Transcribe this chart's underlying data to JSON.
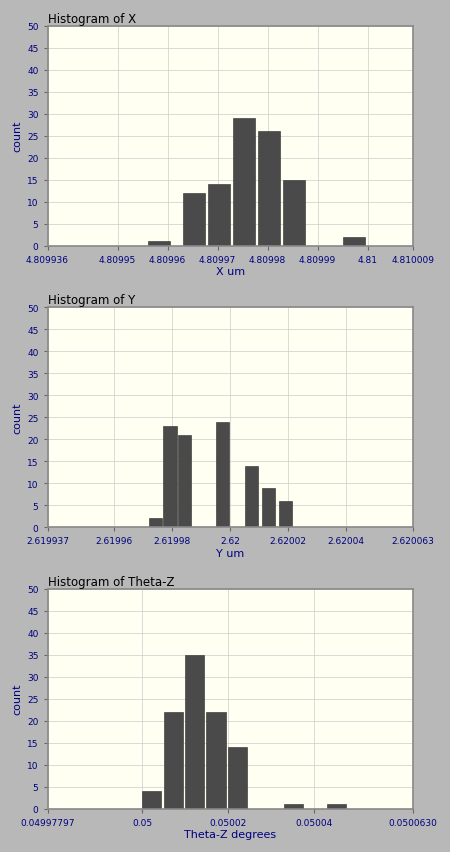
{
  "plots": [
    {
      "title": "Histogram of X",
      "xlabel": "X um",
      "ylabel": "count",
      "xlim": [
        4.809936,
        4.810009
      ],
      "ylim": [
        0,
        50
      ],
      "yticks": [
        0,
        5,
        10,
        15,
        20,
        25,
        30,
        35,
        40,
        45,
        50
      ],
      "xticks": [
        4.809936,
        4.80995,
        4.80996,
        4.80997,
        4.80998,
        4.80999,
        4.81,
        4.810009
      ],
      "xtick_labels": [
        "4.809936",
        "4.80995",
        "4.80996",
        "4.80997",
        "4.80998",
        "4.80999",
        "4.81",
        "4.810009"
      ],
      "bar_lefts": [
        4.809956,
        4.809963,
        4.809968,
        4.809973,
        4.809978,
        4.809983,
        4.809995
      ],
      "bar_heights": [
        1,
        12,
        14,
        29,
        26,
        15,
        2
      ],
      "bar_width": 4.5e-06
    },
    {
      "title": "Histogram of Y",
      "xlabel": "Y um",
      "ylabel": "count",
      "xlim": [
        2.619937,
        2.620063
      ],
      "ylim": [
        0,
        50
      ],
      "yticks": [
        0,
        5,
        10,
        15,
        20,
        25,
        30,
        35,
        40,
        45,
        50
      ],
      "xticks": [
        2.619937,
        2.61996,
        2.61998,
        2.62,
        2.62002,
        2.62004,
        2.620063
      ],
      "xtick_labels": [
        "2.619937",
        "2.61996",
        "2.61998",
        "2.62",
        "2.62002",
        "2.62004",
        "2.620063"
      ],
      "bar_lefts": [
        2.619972,
        2.619977,
        2.619982,
        2.619995,
        2.620005,
        2.620011,
        2.620017
      ],
      "bar_heights": [
        2,
        23,
        21,
        24,
        14,
        9,
        6
      ],
      "bar_width": 4.5e-06
    },
    {
      "title": "Histogram of Theta-Z",
      "xlabel": "Theta-Z degrees",
      "ylabel": "count",
      "xlim": [
        0.04997797,
        0.05006305
      ],
      "ylim": [
        0,
        50
      ],
      "yticks": [
        0,
        5,
        10,
        15,
        20,
        25,
        30,
        35,
        40,
        45,
        50
      ],
      "xticks": [
        0.04997797,
        0.05,
        0.05002,
        0.05004,
        0.05006305
      ],
      "xtick_labels": [
        "0.04997797",
        "0.05",
        "0.05002",
        "0.05004",
        "0.0500630"
      ],
      "bar_lefts": [
        0.05,
        0.050005,
        0.05001,
        0.050015,
        0.05002,
        0.050033,
        0.050043
      ],
      "bar_heights": [
        4,
        22,
        35,
        22,
        14,
        1,
        1
      ],
      "bar_width": 4.5e-06
    }
  ],
  "bar_color": "#4a4a4a",
  "bar_edge_color": "#2a2a2a",
  "plot_bg_color": "#fffff2",
  "outer_bg_color": "#b8b8b8",
  "title_color": "#000000",
  "axis_label_color": "#000080",
  "tick_label_color": "#000080",
  "grid_color": "#cccccc",
  "title_fontsize": 8.5,
  "label_fontsize": 8,
  "tick_fontsize": 6.5
}
